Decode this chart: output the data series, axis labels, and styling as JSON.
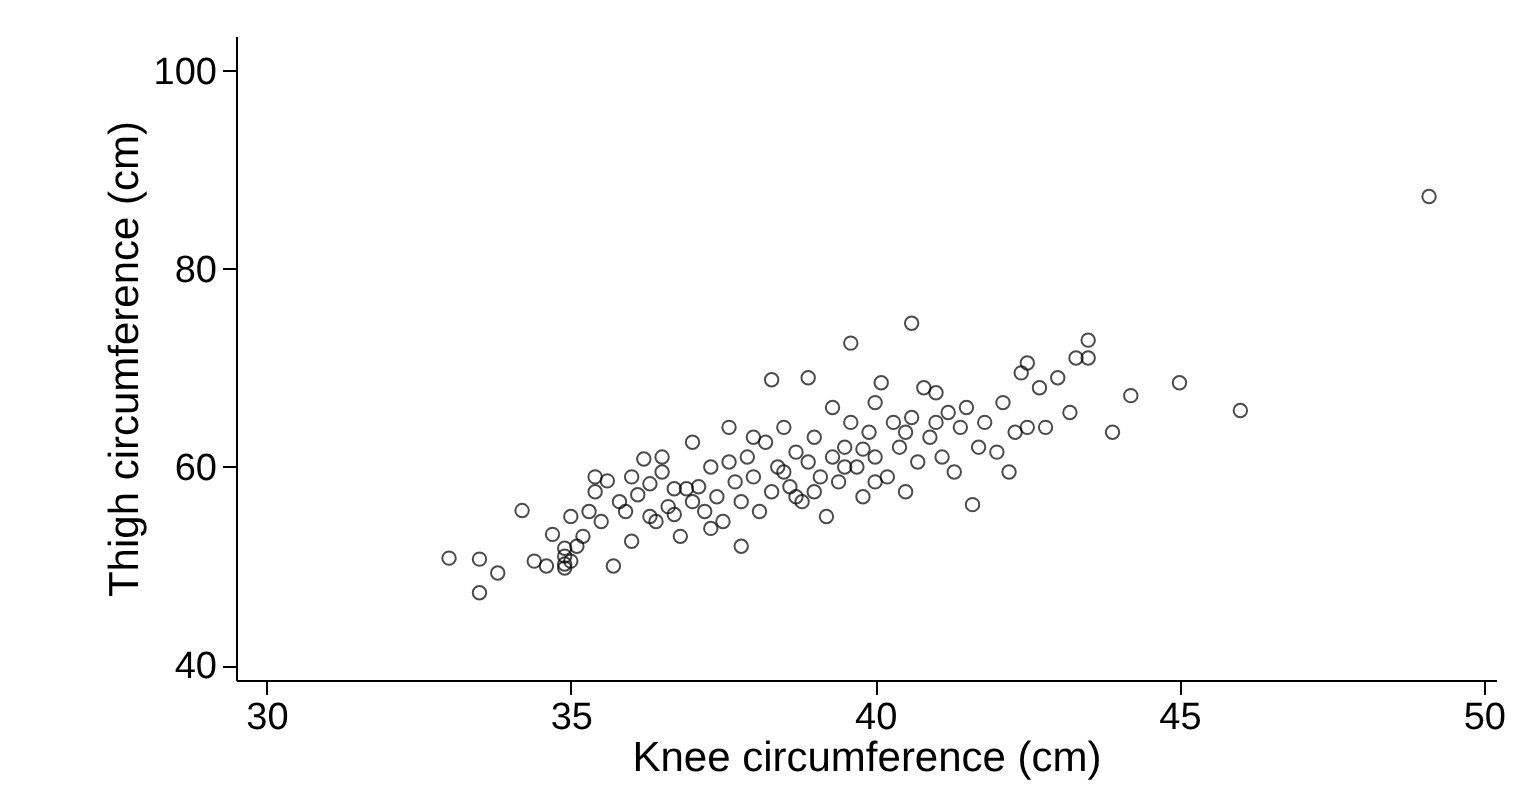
{
  "chart_data": {
    "type": "scatter",
    "xlabel": "Knee circumference (cm)",
    "ylabel": "Thigh circumference (cm)",
    "xlim": [
      29.5,
      50.2
    ],
    "ylim": [
      38.5,
      103.5
    ],
    "xticks": [
      30,
      35,
      40,
      45,
      50
    ],
    "yticks": [
      40,
      60,
      80,
      100
    ],
    "grid": false,
    "marker": "circle",
    "series": [
      {
        "color": "#000000",
        "x": [
          33.0,
          33.5,
          33.5,
          33.8,
          34.2,
          34.4,
          34.6,
          34.7,
          34.9,
          34.9,
          34.9,
          35.0,
          35.1,
          35.2,
          35.3,
          35.4,
          35.4,
          35.6,
          35.5,
          35.7,
          35.8,
          35.9,
          36.0,
          36.1,
          36.2,
          36.3,
          36.3,
          36.4,
          36.5,
          36.6,
          36.7,
          36.8,
          36.9,
          37.0,
          37.1,
          37.2,
          37.3,
          37.4,
          37.5,
          37.6,
          37.6,
          37.7,
          37.8,
          37.8,
          37.9,
          38.0,
          38.1,
          38.2,
          38.3,
          38.3,
          38.4,
          38.5,
          38.6,
          38.7,
          38.8,
          38.9,
          38.9,
          39.0,
          39.1,
          39.2,
          39.3,
          39.3,
          39.4,
          39.5,
          39.6,
          39.6,
          39.7,
          39.8,
          39.9,
          40.0,
          40.0,
          40.1,
          40.2,
          40.3,
          40.4,
          40.5,
          40.6,
          40.6,
          40.7,
          40.8,
          40.9,
          41.0,
          41.1,
          41.2,
          41.3,
          41.4,
          41.5,
          41.6,
          41.7,
          41.8,
          42.0,
          42.1,
          42.2,
          42.3,
          42.4,
          42.5,
          42.5,
          42.7,
          42.8,
          43.0,
          43.2,
          43.3,
          43.5,
          43.5,
          43.9,
          44.2,
          45.0,
          46.0,
          49.1,
          36.0,
          36.5,
          37.0,
          38.0,
          38.5,
          39.0,
          39.5,
          40.0,
          35.0,
          34.9,
          36.7,
          37.3,
          38.7,
          39.8,
          40.5,
          41.0
        ],
        "values": [
          50.8,
          50.7,
          47.3,
          49.3,
          55.6,
          50.5,
          50.0,
          53.2,
          51.8,
          50.2,
          49.8,
          50.5,
          52.0,
          53.0,
          55.5,
          59.0,
          57.5,
          58.6,
          54.5,
          50.0,
          56.5,
          55.5,
          52.5,
          57.2,
          60.8,
          58.3,
          55.0,
          54.5,
          59.5,
          56.0,
          55.2,
          53.0,
          57.8,
          62.5,
          58.0,
          55.5,
          60.0,
          57.0,
          54.5,
          60.5,
          64.0,
          58.5,
          56.5,
          52.0,
          61.0,
          59.0,
          55.5,
          62.5,
          68.8,
          57.5,
          60.0,
          64.0,
          58.0,
          61.5,
          56.5,
          60.5,
          69.0,
          63.0,
          59.0,
          55.0,
          66.0,
          61.0,
          58.5,
          62.0,
          72.5,
          64.5,
          60.0,
          57.0,
          63.5,
          66.5,
          61.0,
          68.5,
          59.0,
          64.5,
          62.0,
          57.5,
          74.5,
          65.0,
          60.5,
          68.0,
          63.0,
          67.5,
          61.0,
          65.5,
          59.5,
          64.0,
          66.0,
          56.2,
          62.0,
          64.5,
          61.5,
          66.5,
          59.5,
          63.5,
          69.5,
          70.5,
          64.0,
          68.0,
          64.0,
          69.0,
          65.5,
          71.0,
          72.8,
          71.0,
          63.5,
          67.2,
          68.5,
          65.7,
          87.3,
          59.0,
          61.0,
          56.5,
          63.0,
          59.5,
          57.5,
          60.0,
          58.5,
          55.0,
          51.0,
          57.8,
          53.8,
          57.0,
          61.8,
          63.5,
          64.5
        ]
      }
    ]
  }
}
